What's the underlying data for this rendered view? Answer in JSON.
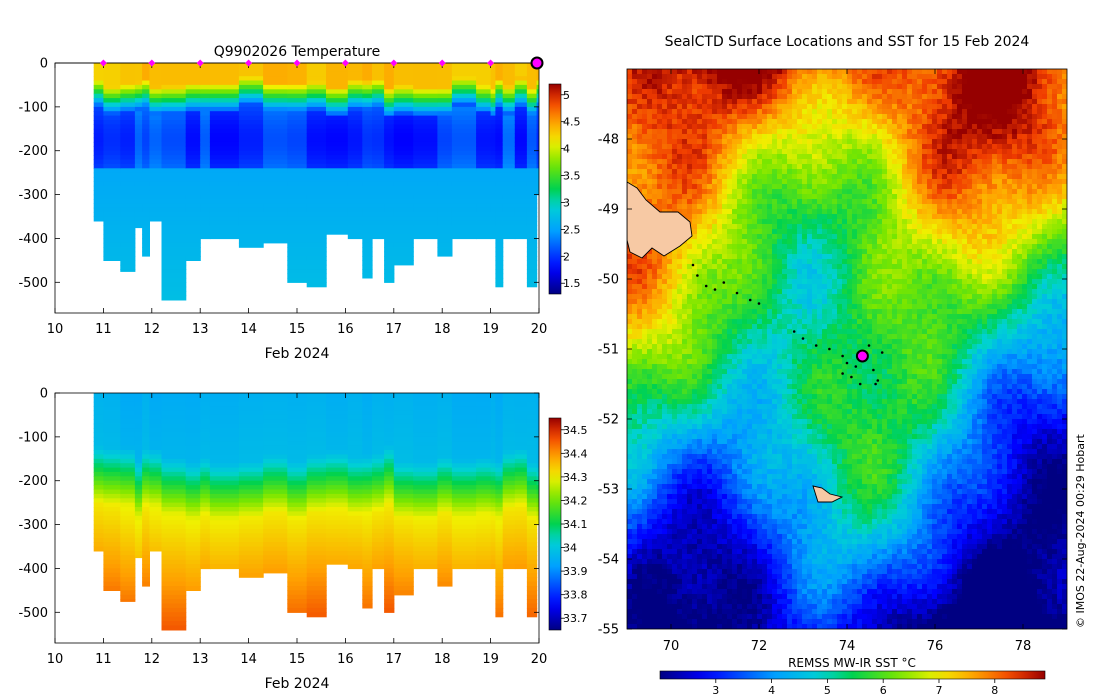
{
  "chart_data": [
    {
      "type": "heatmap",
      "title": "Q9902026  Temperature",
      "xlabel": "Feb 2024",
      "ylabel": "",
      "xlim": [
        10,
        20
      ],
      "ylim": [
        -570,
        0
      ],
      "xticks": [
        "10",
        "11",
        "12",
        "13",
        "14",
        "15",
        "16",
        "17",
        "18",
        "19",
        "20"
      ],
      "yticks": [
        "0",
        "-100",
        "-200",
        "-300",
        "-400",
        "-500"
      ],
      "colorbar": {
        "min": 1.3,
        "max": 5.2,
        "ticks": [
          "1.5",
          "2",
          "2.5",
          "3",
          "3.5",
          "4",
          "4.5",
          "5"
        ]
      },
      "surface_markers_day": [
        11,
        12,
        13,
        14,
        15,
        16,
        17,
        18,
        19
      ],
      "latest_marker_day": 20,
      "profile_day_edges": [
        10.8,
        11.0,
        11.35,
        11.65,
        11.8,
        11.95,
        12.2,
        12.7,
        13.0,
        13.2,
        13.8,
        14.3,
        14.8,
        15.2,
        15.6,
        16.05,
        16.35,
        16.55,
        16.8,
        17.0,
        17.4,
        17.9,
        18.2,
        18.7,
        19.0,
        19.1,
        19.25,
        19.5,
        19.75,
        19.95,
        20.05
      ],
      "profile_max_depth": [
        360,
        450,
        475,
        375,
        440,
        360,
        540,
        450,
        400,
        400,
        420,
        410,
        500,
        510,
        390,
        400,
        490,
        400,
        500,
        460,
        400,
        440,
        400,
        400,
        400,
        510,
        400,
        400,
        510,
        300
      ]
    },
    {
      "type": "heatmap",
      "title": "",
      "xlabel": "Feb 2024",
      "ylabel": "",
      "xlim": [
        10,
        20
      ],
      "ylim": [
        -570,
        0
      ],
      "xticks": [
        "10",
        "11",
        "12",
        "13",
        "14",
        "15",
        "16",
        "17",
        "18",
        "19",
        "20"
      ],
      "yticks": [
        "0",
        "-100",
        "-200",
        "-300",
        "-400",
        "-500"
      ],
      "colorbar": {
        "min": 33.65,
        "max": 34.55,
        "ticks": [
          "33.7",
          "33.8",
          "33.9",
          "34",
          "34.1",
          "34.2",
          "34.3",
          "34.4",
          "34.5"
        ]
      }
    },
    {
      "type": "heatmap",
      "title": "SealCTD Surface Locations and SST for 15 Feb 2024",
      "xlabel": "REMSS MW-IR SST °C",
      "xlim": [
        69,
        79
      ],
      "ylim": [
        -55,
        -47
      ],
      "xticks": [
        "70",
        "72",
        "74",
        "76",
        "78"
      ],
      "yticks": [
        "-48",
        "-49",
        "-50",
        "-51",
        "-52",
        "-53",
        "-54",
        "-55"
      ],
      "colorbar": {
        "min": 2.0,
        "max": 8.9,
        "ticks": [
          "3",
          "4",
          "5",
          "6",
          "7",
          "8"
        ]
      },
      "track_lonlat": [
        [
          70.5,
          -49.8
        ],
        [
          70.6,
          -49.95
        ],
        [
          70.8,
          -50.1
        ],
        [
          71.0,
          -50.15
        ],
        [
          71.2,
          -50.05
        ],
        [
          71.5,
          -50.2
        ],
        [
          71.8,
          -50.3
        ],
        [
          72.0,
          -50.35
        ],
        [
          72.8,
          -50.75
        ],
        [
          73.0,
          -50.85
        ],
        [
          73.3,
          -50.95
        ],
        [
          73.6,
          -51.0
        ],
        [
          73.9,
          -51.1
        ],
        [
          74.0,
          -51.2
        ],
        [
          74.2,
          -51.25
        ],
        [
          74.4,
          -51.1
        ],
        [
          74.6,
          -51.3
        ],
        [
          74.7,
          -51.45
        ],
        [
          74.3,
          -51.5
        ],
        [
          74.1,
          -51.4
        ],
        [
          73.9,
          -51.35
        ],
        [
          74.5,
          -50.95
        ],
        [
          74.8,
          -51.05
        ],
        [
          74.65,
          -51.5
        ]
      ],
      "surface_location": [
        74.35,
        -51.1
      ],
      "credit": "© IMOS 22-Aug-2024 00:29 Hobart"
    }
  ]
}
